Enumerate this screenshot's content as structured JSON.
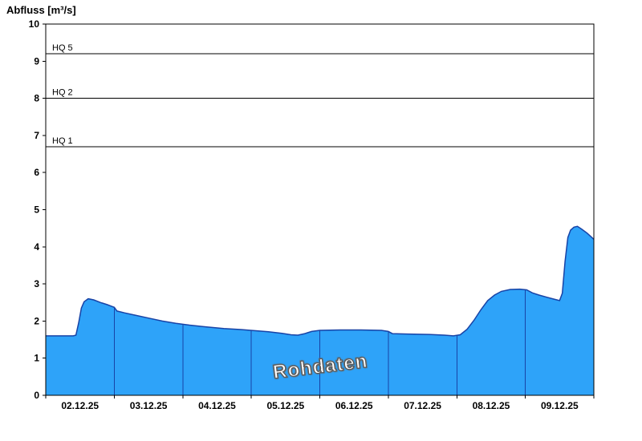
{
  "title": "Abfluss [m³/s]",
  "watermark": "Rohdaten",
  "colors": {
    "area_fill": "#2EA3F9",
    "series_stroke": "#1843A6",
    "day_separator": "#1843A6",
    "reference_line": "#000000",
    "frame": "#000000",
    "text": "#000000"
  },
  "chart_data": {
    "type": "area",
    "title": "Abfluss [m³/s]",
    "ylabel": "Abfluss [m³/s]",
    "xlabel": "",
    "ylim": [
      0,
      10
    ],
    "yticks": [
      0,
      1,
      2,
      3,
      4,
      5,
      6,
      7,
      8,
      9,
      10
    ],
    "x_categories": [
      "02.12.25",
      "03.12.25",
      "04.12.25",
      "05.12.25",
      "06.12.25",
      "07.12.25",
      "08.12.25",
      "09.12.25"
    ],
    "x_range_days": [
      0,
      8
    ],
    "grid": "none",
    "legend": "none",
    "reference_lines": [
      {
        "label": "HQ 5",
        "value": 9.2
      },
      {
        "label": "HQ 2",
        "value": 8.0
      },
      {
        "label": "HQ 1",
        "value": 6.7
      }
    ],
    "series": [
      {
        "name": "Rohdaten",
        "x": [
          0.0,
          0.4,
          0.44,
          0.48,
          0.52,
          0.56,
          0.62,
          0.7,
          0.8,
          0.9,
          1.0,
          1.04,
          1.15,
          1.3,
          1.5,
          1.7,
          1.9,
          2.1,
          2.35,
          2.6,
          2.85,
          3.05,
          3.25,
          3.45,
          3.58,
          3.68,
          3.78,
          3.88,
          4.0,
          4.3,
          4.6,
          4.9,
          5.0,
          5.06,
          5.3,
          5.6,
          5.82,
          5.95,
          6.05,
          6.15,
          6.25,
          6.35,
          6.45,
          6.55,
          6.65,
          6.78,
          6.92,
          7.02,
          7.1,
          7.2,
          7.32,
          7.42,
          7.5,
          7.54,
          7.58,
          7.62,
          7.66,
          7.71,
          7.76,
          7.82,
          7.9,
          7.96,
          8.0
        ],
        "y": [
          1.6,
          1.6,
          1.62,
          1.95,
          2.35,
          2.52,
          2.6,
          2.57,
          2.5,
          2.44,
          2.37,
          2.27,
          2.22,
          2.16,
          2.08,
          2.0,
          1.94,
          1.89,
          1.84,
          1.8,
          1.77,
          1.74,
          1.71,
          1.67,
          1.63,
          1.62,
          1.66,
          1.72,
          1.75,
          1.76,
          1.76,
          1.75,
          1.72,
          1.66,
          1.65,
          1.64,
          1.62,
          1.6,
          1.63,
          1.78,
          2.02,
          2.3,
          2.55,
          2.7,
          2.8,
          2.85,
          2.86,
          2.84,
          2.76,
          2.7,
          2.64,
          2.59,
          2.55,
          2.75,
          3.6,
          4.25,
          4.45,
          4.53,
          4.55,
          4.48,
          4.37,
          4.27,
          4.2
        ]
      }
    ]
  }
}
